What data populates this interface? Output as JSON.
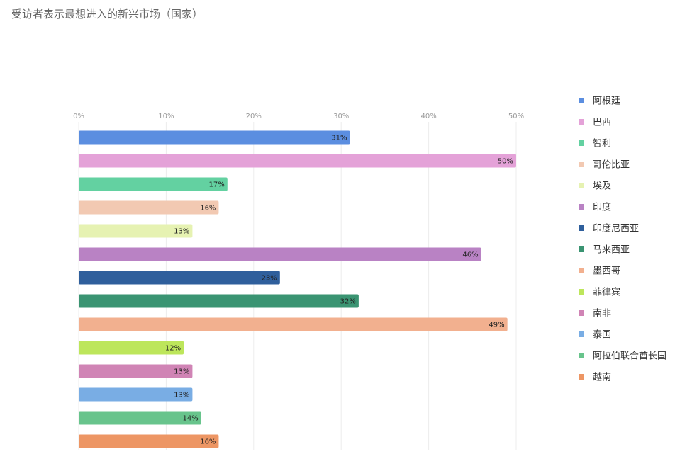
{
  "chart_data": {
    "type": "bar",
    "orientation": "horizontal",
    "title": "受访者表示最想进入的新兴市场（国家）",
    "xlabel": "",
    "ylabel": "",
    "xlim": [
      0,
      50
    ],
    "ticks": [
      0,
      10,
      20,
      30,
      40,
      50
    ],
    "tick_labels": [
      "0%",
      "10%",
      "20%",
      "30%",
      "40%",
      "50%"
    ],
    "tick_position": "top",
    "grid": true,
    "legend_position": "right",
    "categories": [
      "阿根廷",
      "巴西",
      "智利",
      "哥伦比亚",
      "埃及",
      "印度",
      "印度尼西亚",
      "马来西亚",
      "墨西哥",
      "菲律宾",
      "南非",
      "泰国",
      "阿拉伯联合酋长国",
      "越南"
    ],
    "values": [
      31,
      50,
      17,
      16,
      13,
      46,
      23,
      32,
      49,
      12,
      13,
      13,
      14,
      16
    ],
    "value_labels": [
      "31%",
      "50%",
      "17%",
      "16%",
      "13%",
      "46%",
      "23%",
      "32%",
      "49%",
      "12%",
      "13%",
      "13%",
      "14%",
      "16%"
    ],
    "colors": [
      "#5b8ee0",
      "#e4a2d8",
      "#63d1a1",
      "#f2c9b2",
      "#e6f2b2",
      "#b982c4",
      "#2f5f9c",
      "#3a9472",
      "#f2b08f",
      "#bde65b",
      "#d084b5",
      "#79ade4",
      "#68c48c",
      "#ed9664"
    ]
  }
}
